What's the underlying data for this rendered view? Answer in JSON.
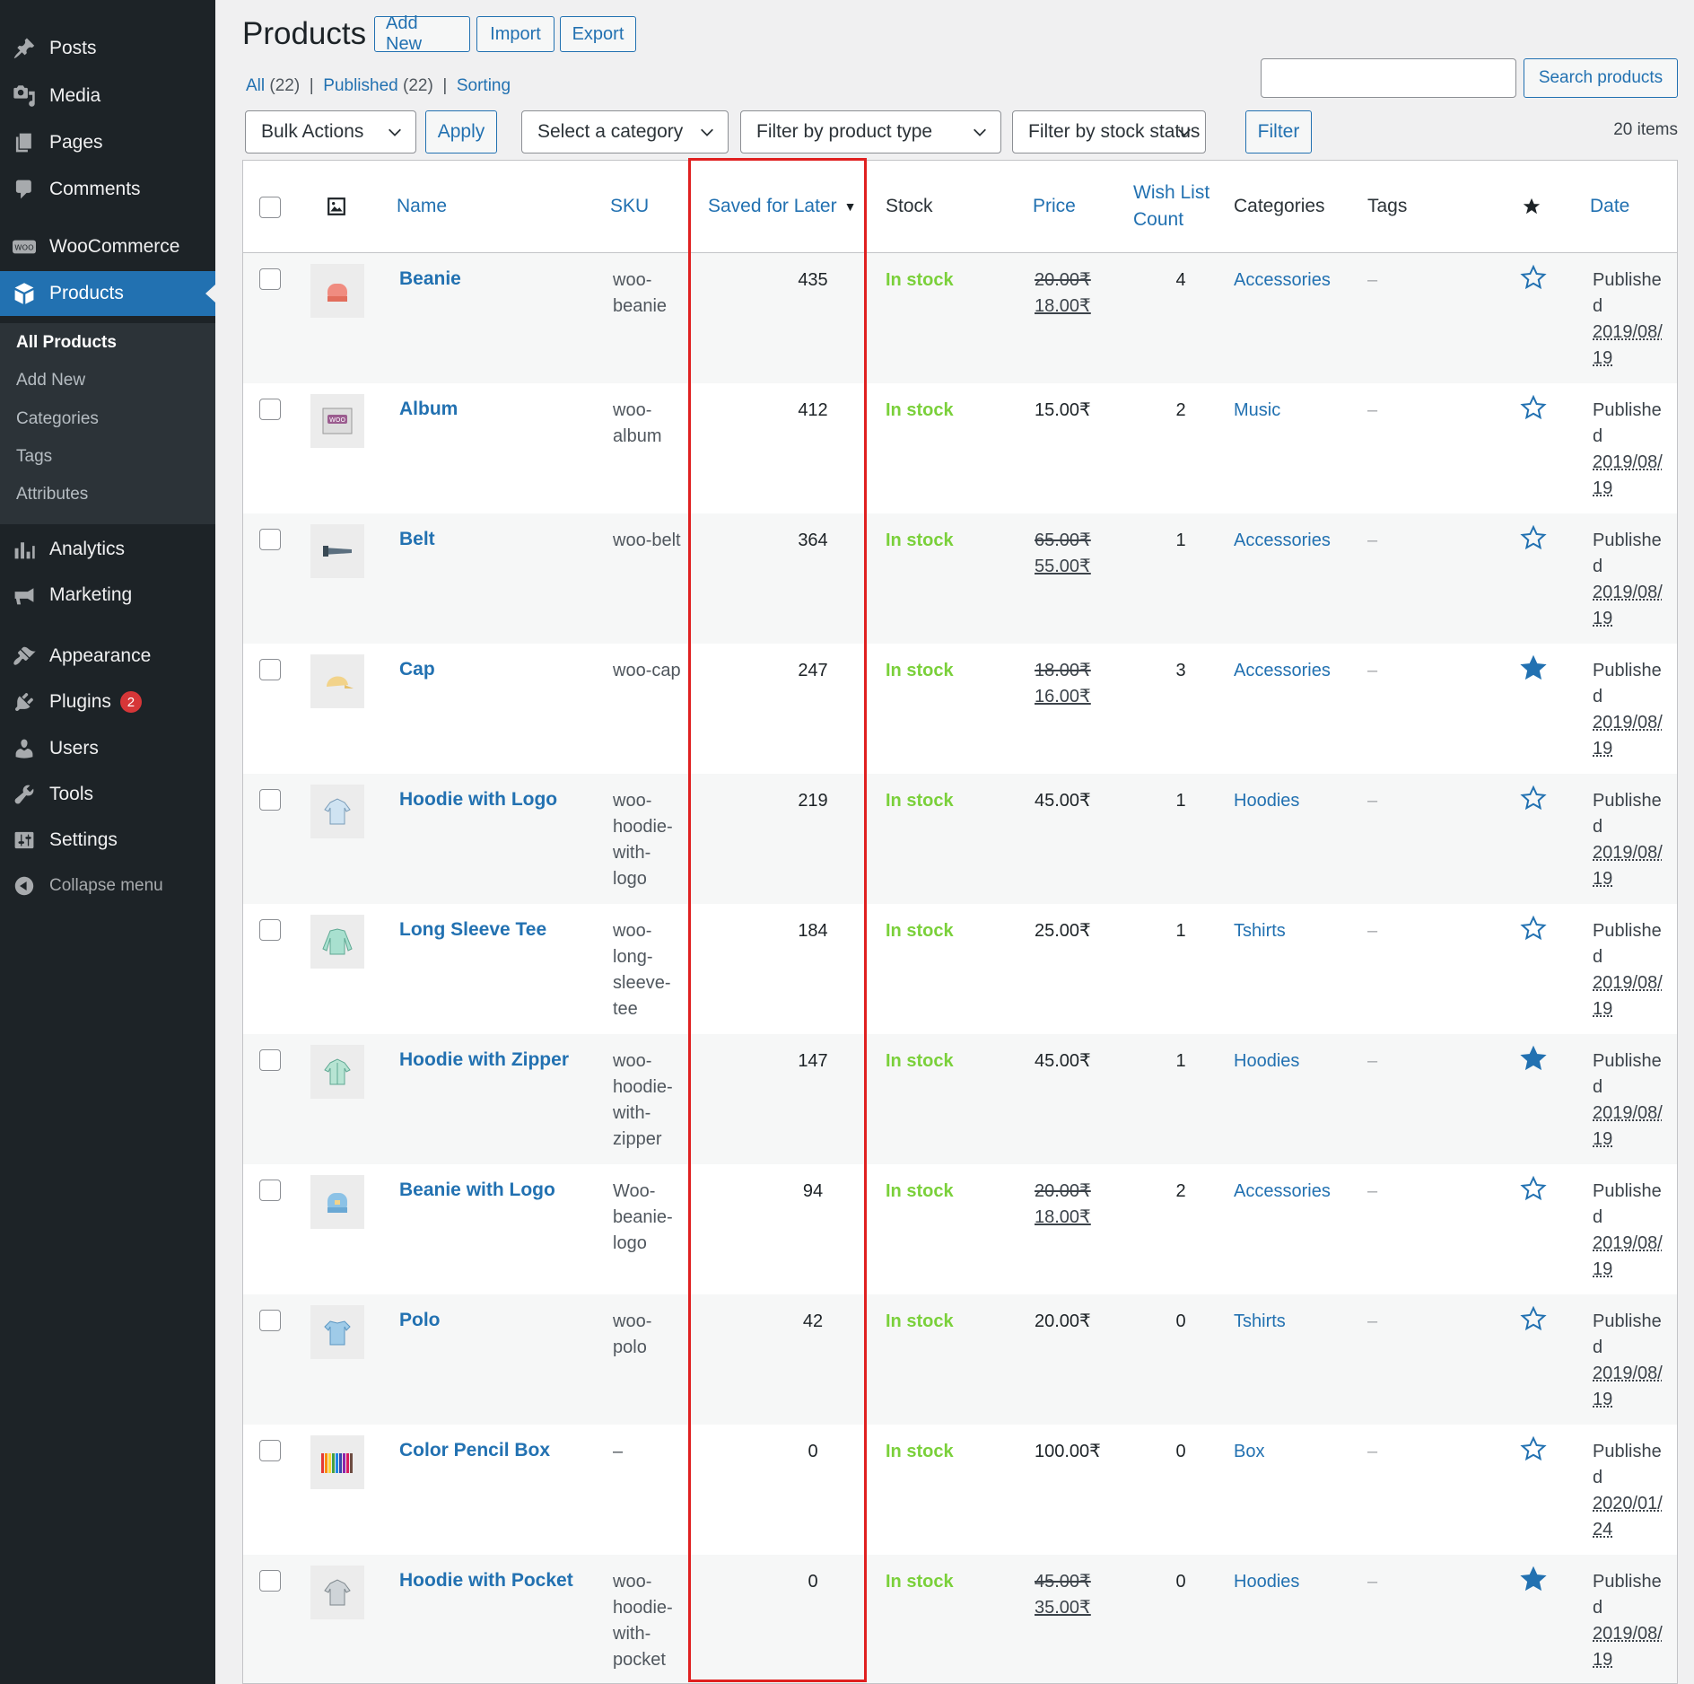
{
  "sidebar": {
    "items": [
      {
        "label": "Posts",
        "icon": "pin-icon"
      },
      {
        "label": "Media",
        "icon": "media-icon"
      },
      {
        "label": "Pages",
        "icon": "pages-icon"
      },
      {
        "label": "Comments",
        "icon": "comments-icon"
      },
      {
        "label": "WooCommerce",
        "icon": "woocommerce-icon"
      },
      {
        "label": "Products",
        "icon": "products-icon"
      },
      {
        "label": "Analytics",
        "icon": "analytics-icon"
      },
      {
        "label": "Marketing",
        "icon": "megaphone-icon"
      },
      {
        "label": "Appearance",
        "icon": "brush-icon"
      },
      {
        "label": "Plugins",
        "icon": "plugins-icon",
        "badge": "2"
      },
      {
        "label": "Users",
        "icon": "users-icon"
      },
      {
        "label": "Tools",
        "icon": "wrench-icon"
      },
      {
        "label": "Settings",
        "icon": "settings-icon"
      },
      {
        "label": "Collapse menu",
        "icon": "collapse-icon"
      }
    ],
    "submenu": [
      "All Products",
      "Add New",
      "Categories",
      "Tags",
      "Attributes"
    ]
  },
  "header": {
    "title": "Products",
    "add_new": "Add New",
    "import": "Import",
    "export": "Export"
  },
  "views": {
    "all": "All",
    "all_count": "(22)",
    "published": "Published",
    "published_count": "(22)",
    "sorting": "Sorting"
  },
  "search": {
    "button": "Search products",
    "value": ""
  },
  "filters": {
    "bulk_actions": "Bulk Actions",
    "apply": "Apply",
    "category": "Select a category",
    "product_type": "Filter by product type",
    "stock_status": "Filter by stock status",
    "filter": "Filter",
    "items_count": "20 items"
  },
  "columns": {
    "name": "Name",
    "sku": "SKU",
    "saved_for_later": "Saved for Later",
    "stock": "Stock",
    "price": "Price",
    "wish_list_1": "Wish List",
    "wish_list_2": "Count",
    "categories": "Categories",
    "tags": "Tags",
    "date": "Date"
  },
  "colors": {
    "accent": "#2271b1",
    "in_stock": "#7ad03a",
    "highlight": "#e02020",
    "sidebar": "#1d2327"
  },
  "rows": [
    {
      "name": "Beanie",
      "sku": [
        "woo-",
        "beanie"
      ],
      "saved": "435",
      "stock": "In stock",
      "price_old": "20.00₹",
      "price": "18.00₹",
      "wish": "4",
      "category": "Accessories",
      "tags": "–",
      "featured": false,
      "status": "Publishe",
      "status2": "d",
      "date1": "2019/08/",
      "date2": "19",
      "thumb": "beanie"
    },
    {
      "name": "Album",
      "sku": [
        "woo-",
        "album"
      ],
      "saved": "412",
      "stock": "In stock",
      "price_old": "",
      "price": "15.00₹",
      "wish": "2",
      "category": "Music",
      "tags": "–",
      "featured": false,
      "status": "Publishe",
      "status2": "d",
      "date1": "2019/08/",
      "date2": "19",
      "thumb": "album"
    },
    {
      "name": "Belt",
      "sku": [
        "woo-belt"
      ],
      "saved": "364",
      "stock": "In stock",
      "price_old": "65.00₹",
      "price": "55.00₹",
      "wish": "1",
      "category": "Accessories",
      "tags": "–",
      "featured": false,
      "status": "Publishe",
      "status2": "d",
      "date1": "2019/08/",
      "date2": "19",
      "thumb": "belt"
    },
    {
      "name": "Cap",
      "sku": [
        "woo-cap"
      ],
      "saved": "247",
      "stock": "In stock",
      "price_old": "18.00₹",
      "price": "16.00₹",
      "wish": "3",
      "category": "Accessories",
      "tags": "–",
      "featured": true,
      "status": "Publishe",
      "status2": "d",
      "date1": "2019/08/",
      "date2": "19",
      "thumb": "cap"
    },
    {
      "name": "Hoodie with Logo",
      "sku": [
        "woo-",
        "hoodie-",
        "with-",
        "logo"
      ],
      "saved": "219",
      "stock": "In stock",
      "price_old": "",
      "price": "45.00₹",
      "wish": "1",
      "category": "Hoodies",
      "tags": "–",
      "featured": false,
      "status": "Publishe",
      "status2": "d",
      "date1": "2019/08/",
      "date2": "19",
      "thumb": "hoodie"
    },
    {
      "name": "Long Sleeve Tee",
      "sku": [
        "woo-",
        "long-",
        "sleeve-",
        "tee"
      ],
      "saved": "184",
      "stock": "In stock",
      "price_old": "",
      "price": "25.00₹",
      "wish": "1",
      "category": "Tshirts",
      "tags": "–",
      "featured": false,
      "status": "Publishe",
      "status2": "d",
      "date1": "2019/08/",
      "date2": "19",
      "thumb": "longsleeve"
    },
    {
      "name": "Hoodie with Zipper",
      "sku": [
        "woo-",
        "hoodie-",
        "with-",
        "zipper"
      ],
      "saved": "147",
      "stock": "In stock",
      "price_old": "",
      "price": "45.00₹",
      "wish": "1",
      "category": "Hoodies",
      "tags": "–",
      "featured": true,
      "status": "Publishe",
      "status2": "d",
      "date1": "2019/08/",
      "date2": "19",
      "thumb": "hoodie-zip"
    },
    {
      "name": "Beanie with Logo",
      "sku": [
        "Woo-",
        "beanie-",
        "logo"
      ],
      "saved": "94",
      "stock": "In stock",
      "price_old": "20.00₹",
      "price": "18.00₹",
      "wish": "2",
      "category": "Accessories",
      "tags": "–",
      "featured": false,
      "status": "Publishe",
      "status2": "d",
      "date1": "2019/08/",
      "date2": "19",
      "thumb": "beanie-logo"
    },
    {
      "name": "Polo",
      "sku": [
        "woo-",
        "polo"
      ],
      "saved": "42",
      "stock": "In stock",
      "price_old": "",
      "price": "20.00₹",
      "wish": "0",
      "category": "Tshirts",
      "tags": "–",
      "featured": false,
      "status": "Publishe",
      "status2": "d",
      "date1": "2019/08/",
      "date2": "19",
      "thumb": "polo"
    },
    {
      "name": "Color Pencil Box",
      "sku": [
        "–"
      ],
      "saved": "0",
      "stock": "In stock",
      "price_old": "",
      "price": "100.00₹",
      "wish": "0",
      "category": "Box",
      "tags": "–",
      "featured": false,
      "status": "Publishe",
      "status2": "d",
      "date1": "2020/01/",
      "date2": "24",
      "thumb": "pencils"
    },
    {
      "name": "Hoodie with Pocket",
      "sku": [
        "woo-",
        "hoodie-",
        "with-",
        "pocket"
      ],
      "saved": "0",
      "stock": "In stock",
      "price_old": "45.00₹",
      "price": "35.00₹",
      "wish": "0",
      "category": "Hoodies",
      "tags": "–",
      "featured": true,
      "status": "Publishe",
      "status2": "d",
      "date1": "2019/08/",
      "date2": "19",
      "thumb": "hoodie-grey"
    }
  ]
}
